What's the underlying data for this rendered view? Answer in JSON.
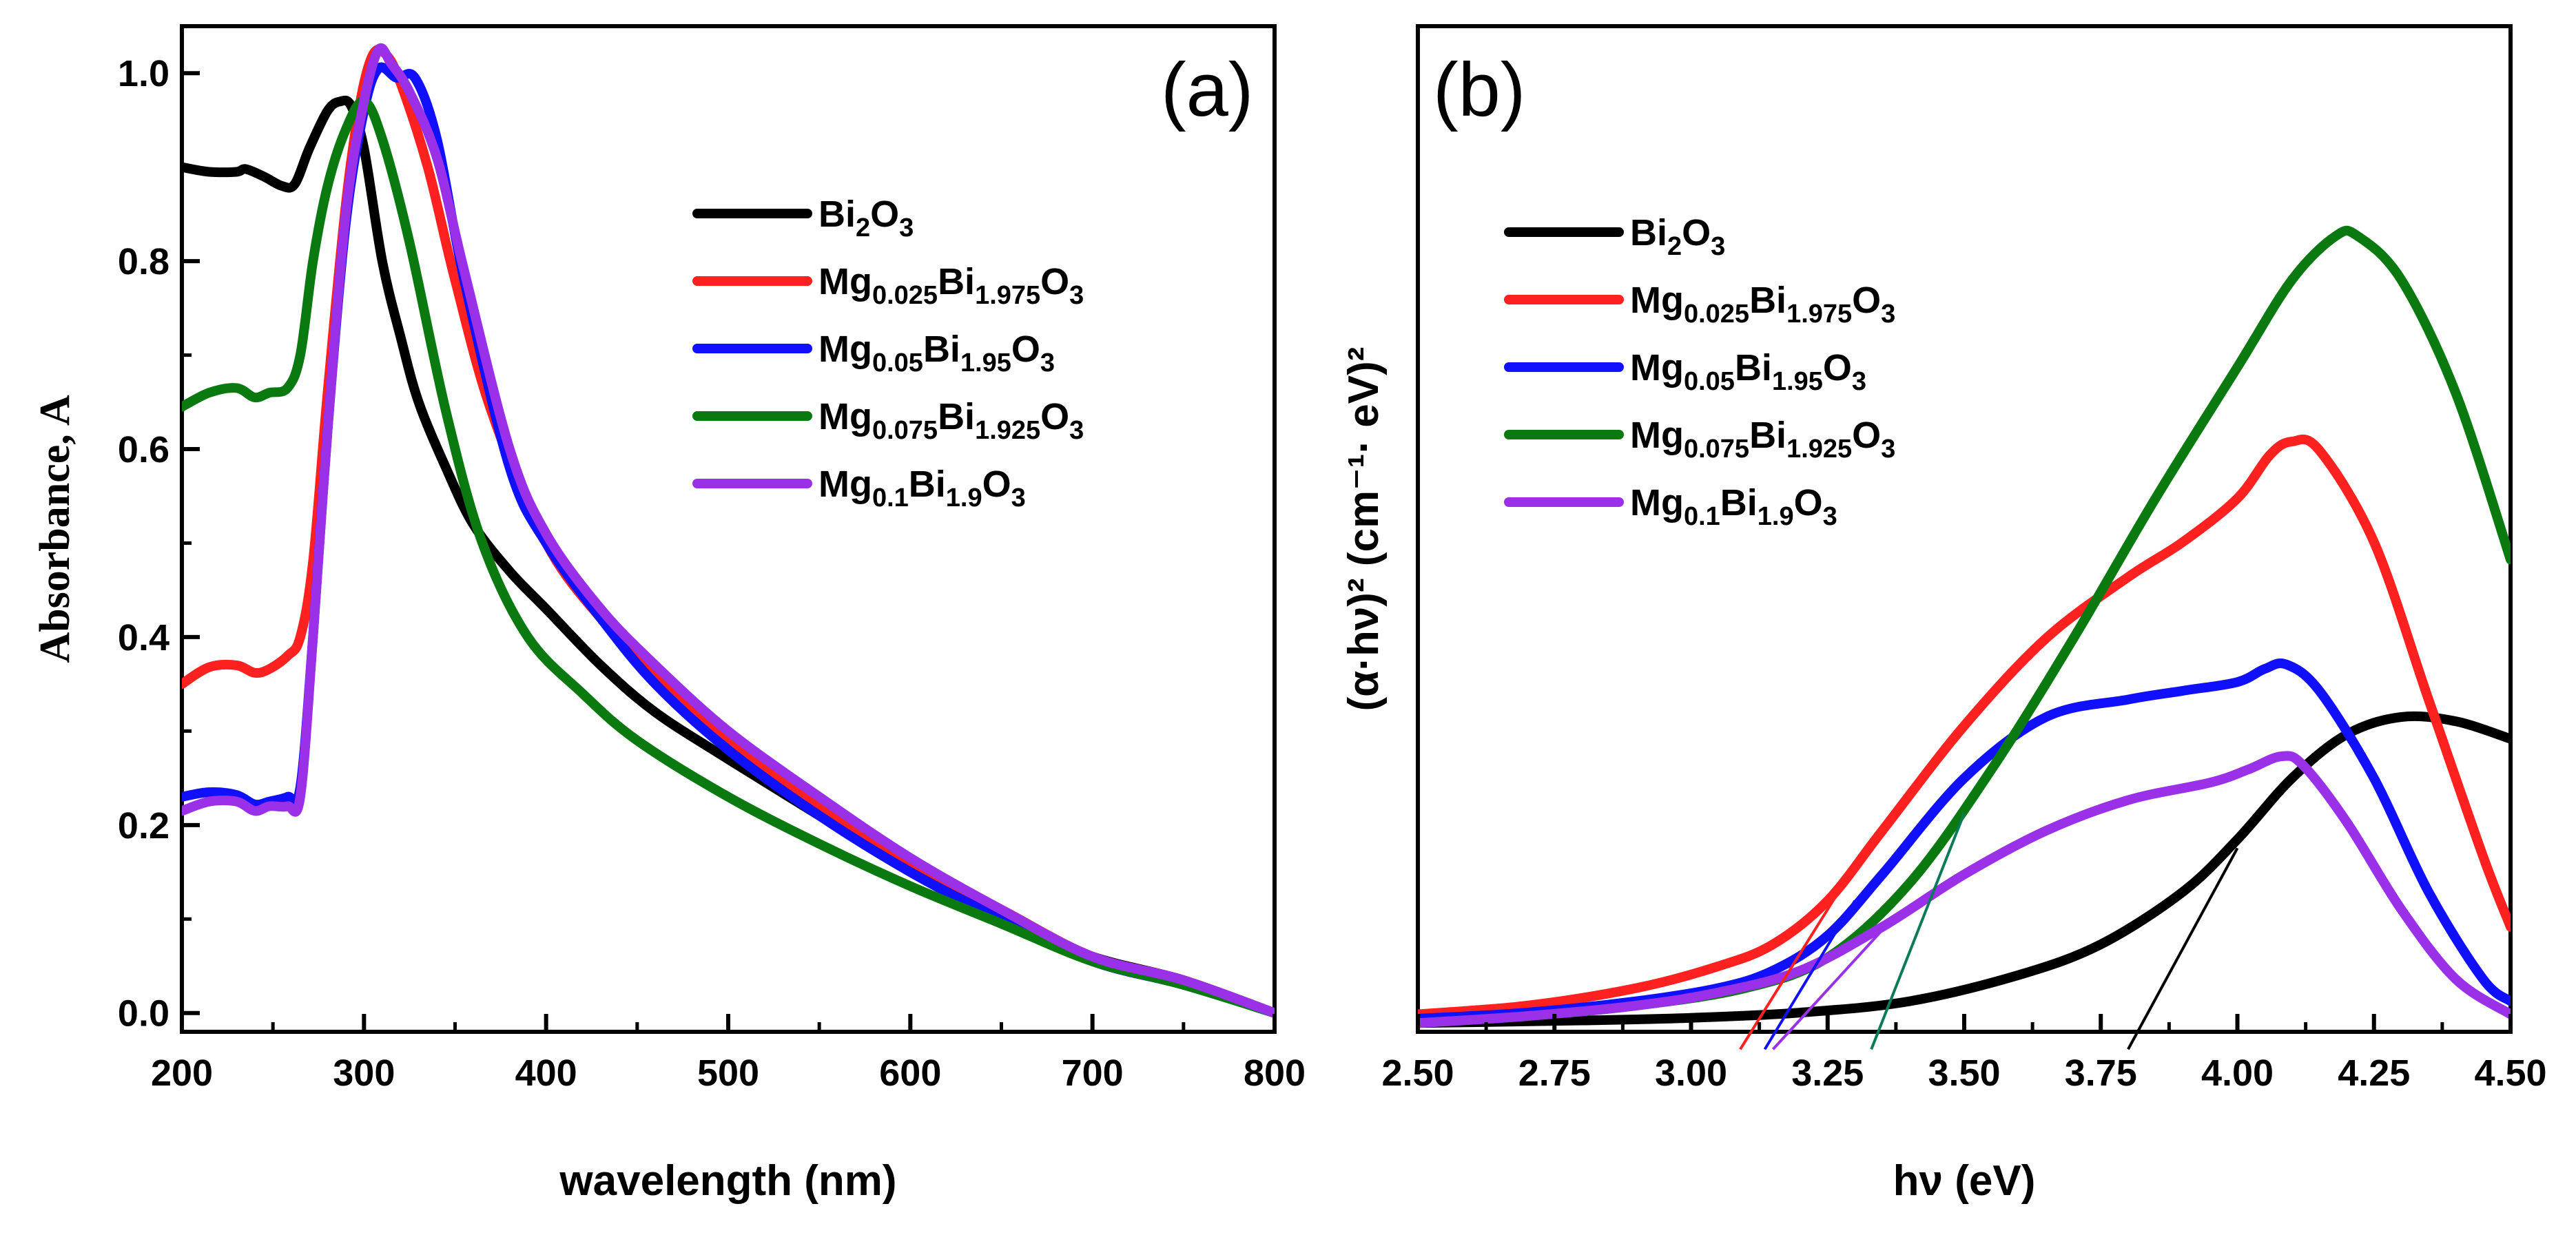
{
  "colors": {
    "Bi2O3": "#000000",
    "Mg0.025": "#ff2020",
    "Mg0.05": "#1010ff",
    "Mg0.075": "#0a7a10",
    "Mg0.1": "#9a30e8",
    "tangent_green": "#0a7a58"
  },
  "legend": [
    {
      "key": "Bi2O3",
      "base": "Bi",
      "parts": [
        [
          "Bi",
          "2"
        ],
        [
          "O",
          "3"
        ]
      ]
    },
    {
      "key": "Mg0.025",
      "parts": [
        [
          "Mg",
          "0.025"
        ],
        [
          "Bi",
          "1.975"
        ],
        [
          "O",
          "3"
        ]
      ]
    },
    {
      "key": "Mg0.05",
      "parts": [
        [
          "Mg",
          "0.05"
        ],
        [
          "Bi",
          "1.95"
        ],
        [
          "O",
          "3"
        ]
      ]
    },
    {
      "key": "Mg0.075",
      "parts": [
        [
          "Mg",
          "0.075"
        ],
        [
          "Bi",
          "1.925"
        ],
        [
          "O",
          "3"
        ]
      ]
    },
    {
      "key": "Mg0.1",
      "parts": [
        [
          "Mg",
          "0.1"
        ],
        [
          "Bi",
          "1.9"
        ],
        [
          "O",
          "3"
        ]
      ]
    }
  ],
  "chart_data": [
    {
      "panel": "(a)",
      "type": "line",
      "xlabel": "wavelength (nm)",
      "ylabel": "Absorbance, A",
      "xlim": [
        200,
        800
      ],
      "ylim": [
        -0.02,
        1.05
      ],
      "xticks": [
        200,
        300,
        400,
        500,
        600,
        700,
        800
      ],
      "yticks": [
        0.0,
        0.2,
        0.4,
        0.6,
        0.8,
        1.0
      ],
      "legend_position": "top-right",
      "series": [
        {
          "key": "Bi2O3",
          "points": [
            [
              200,
              0.9
            ],
            [
              215,
              0.895
            ],
            [
              230,
              0.895
            ],
            [
              235,
              0.898
            ],
            [
              245,
              0.89
            ],
            [
              255,
              0.88
            ],
            [
              262,
              0.882
            ],
            [
              270,
              0.92
            ],
            [
              280,
              0.96
            ],
            [
              287,
              0.97
            ],
            [
              293,
              0.965
            ],
            [
              300,
              0.92
            ],
            [
              310,
              0.8
            ],
            [
              320,
              0.72
            ],
            [
              330,
              0.65
            ],
            [
              345,
              0.58
            ],
            [
              360,
              0.52
            ],
            [
              380,
              0.47
            ],
            [
              400,
              0.43
            ],
            [
              430,
              0.37
            ],
            [
              460,
              0.32
            ],
            [
              500,
              0.27
            ],
            [
              550,
              0.21
            ],
            [
              600,
              0.15
            ],
            [
              650,
              0.1
            ],
            [
              700,
              0.06
            ],
            [
              750,
              0.035
            ],
            [
              800,
              0.0
            ]
          ]
        },
        {
          "key": "Mg0.025",
          "points": [
            [
              200,
              0.35
            ],
            [
              215,
              0.368
            ],
            [
              230,
              0.37
            ],
            [
              240,
              0.362
            ],
            [
              248,
              0.366
            ],
            [
              258,
              0.38
            ],
            [
              265,
              0.4
            ],
            [
              272,
              0.48
            ],
            [
              280,
              0.66
            ],
            [
              290,
              0.86
            ],
            [
              298,
              0.97
            ],
            [
              305,
              1.02
            ],
            [
              312,
              1.02
            ],
            [
              320,
              0.99
            ],
            [
              335,
              0.9
            ],
            [
              350,
              0.78
            ],
            [
              370,
              0.64
            ],
            [
              400,
              0.5
            ],
            [
              430,
              0.42
            ],
            [
              460,
              0.36
            ],
            [
              500,
              0.29
            ],
            [
              550,
              0.22
            ],
            [
              600,
              0.16
            ],
            [
              650,
              0.11
            ],
            [
              700,
              0.06
            ],
            [
              750,
              0.035
            ],
            [
              800,
              0.0
            ]
          ]
        },
        {
          "key": "Mg0.05",
          "points": [
            [
              200,
              0.23
            ],
            [
              215,
              0.235
            ],
            [
              230,
              0.232
            ],
            [
              240,
              0.222
            ],
            [
              248,
              0.225
            ],
            [
              258,
              0.23
            ],
            [
              265,
              0.24
            ],
            [
              272,
              0.4
            ],
            [
              280,
              0.62
            ],
            [
              290,
              0.84
            ],
            [
              300,
              0.96
            ],
            [
              308,
              1.005
            ],
            [
              318,
              0.995
            ],
            [
              328,
              0.995
            ],
            [
              340,
              0.93
            ],
            [
              355,
              0.78
            ],
            [
              380,
              0.58
            ],
            [
              400,
              0.5
            ],
            [
              430,
              0.42
            ],
            [
              460,
              0.35
            ],
            [
              500,
              0.28
            ],
            [
              550,
              0.21
            ],
            [
              600,
              0.15
            ],
            [
              650,
              0.1
            ],
            [
              700,
              0.055
            ],
            [
              750,
              0.03
            ],
            [
              800,
              0.0
            ]
          ]
        },
        {
          "key": "Mg0.075",
          "points": [
            [
              200,
              0.645
            ],
            [
              215,
              0.66
            ],
            [
              230,
              0.665
            ],
            [
              240,
              0.655
            ],
            [
              248,
              0.66
            ],
            [
              258,
              0.665
            ],
            [
              265,
              0.7
            ],
            [
              272,
              0.8
            ],
            [
              280,
              0.88
            ],
            [
              290,
              0.94
            ],
            [
              300,
              0.97
            ],
            [
              310,
              0.93
            ],
            [
              325,
              0.82
            ],
            [
              345,
              0.64
            ],
            [
              365,
              0.5
            ],
            [
              390,
              0.4
            ],
            [
              420,
              0.34
            ],
            [
              450,
              0.29
            ],
            [
              500,
              0.23
            ],
            [
              550,
              0.18
            ],
            [
              600,
              0.135
            ],
            [
              650,
              0.095
            ],
            [
              700,
              0.055
            ],
            [
              750,
              0.03
            ],
            [
              800,
              0.0
            ]
          ]
        },
        {
          "key": "Mg0.1",
          "points": [
            [
              200,
              0.215
            ],
            [
              215,
              0.225
            ],
            [
              230,
              0.225
            ],
            [
              240,
              0.215
            ],
            [
              248,
              0.22
            ],
            [
              258,
              0.22
            ],
            [
              265,
              0.23
            ],
            [
              272,
              0.4
            ],
            [
              280,
              0.62
            ],
            [
              290,
              0.85
            ],
            [
              300,
              0.97
            ],
            [
              308,
              1.025
            ],
            [
              315,
              1.01
            ],
            [
              325,
              0.98
            ],
            [
              340,
              0.91
            ],
            [
              355,
              0.79
            ],
            [
              380,
              0.6
            ],
            [
              400,
              0.51
            ],
            [
              430,
              0.43
            ],
            [
              460,
              0.37
            ],
            [
              500,
              0.3
            ],
            [
              550,
              0.23
            ],
            [
              600,
              0.165
            ],
            [
              650,
              0.11
            ],
            [
              700,
              0.06
            ],
            [
              750,
              0.035
            ],
            [
              800,
              0.0
            ]
          ]
        }
      ]
    },
    {
      "panel": "(b)",
      "type": "line",
      "xlabel": "hν (eV)",
      "ylabel": "(α·hν)² (cm⁻¹· eV)²",
      "xlim": [
        2.5,
        4.5
      ],
      "ylim": [
        0.0,
        1.15
      ],
      "xticks": [
        2.5,
        2.75,
        3.0,
        3.25,
        3.5,
        3.75,
        4.0,
        4.25,
        4.5
      ],
      "ytick_labels_shown": false,
      "legend_position": "top-left",
      "series": [
        {
          "key": "Bi2O3",
          "points": [
            [
              2.5,
              0.01
            ],
            [
              2.8,
              0.013
            ],
            [
              3.0,
              0.016
            ],
            [
              3.2,
              0.022
            ],
            [
              3.4,
              0.035
            ],
            [
              3.6,
              0.065
            ],
            [
              3.75,
              0.1
            ],
            [
              3.9,
              0.16
            ],
            [
              4.0,
              0.22
            ],
            [
              4.1,
              0.29
            ],
            [
              4.2,
              0.34
            ],
            [
              4.3,
              0.36
            ],
            [
              4.4,
              0.355
            ],
            [
              4.5,
              0.335
            ]
          ]
        },
        {
          "key": "Mg0.025",
          "points": [
            [
              2.5,
              0.02
            ],
            [
              2.7,
              0.03
            ],
            [
              2.9,
              0.05
            ],
            [
              3.05,
              0.075
            ],
            [
              3.15,
              0.1
            ],
            [
              3.25,
              0.15
            ],
            [
              3.35,
              0.23
            ],
            [
              3.5,
              0.35
            ],
            [
              3.65,
              0.45
            ],
            [
              3.8,
              0.52
            ],
            [
              3.9,
              0.56
            ],
            [
              4.0,
              0.61
            ],
            [
              4.06,
              0.66
            ],
            [
              4.1,
              0.675
            ],
            [
              4.15,
              0.665
            ],
            [
              4.25,
              0.56
            ],
            [
              4.35,
              0.38
            ],
            [
              4.45,
              0.2
            ],
            [
              4.5,
              0.12
            ]
          ]
        },
        {
          "key": "Mg0.05",
          "points": [
            [
              2.5,
              0.015
            ],
            [
              2.7,
              0.022
            ],
            [
              2.9,
              0.035
            ],
            [
              3.05,
              0.05
            ],
            [
              3.15,
              0.07
            ],
            [
              3.25,
              0.11
            ],
            [
              3.35,
              0.18
            ],
            [
              3.5,
              0.29
            ],
            [
              3.65,
              0.36
            ],
            [
              3.8,
              0.38
            ],
            [
              3.9,
              0.39
            ],
            [
              4.0,
              0.4
            ],
            [
              4.05,
              0.415
            ],
            [
              4.09,
              0.42
            ],
            [
              4.15,
              0.39
            ],
            [
              4.25,
              0.29
            ],
            [
              4.35,
              0.16
            ],
            [
              4.45,
              0.06
            ],
            [
              4.5,
              0.035
            ]
          ]
        },
        {
          "key": "Mg0.075",
          "points": [
            [
              2.5,
              0.01
            ],
            [
              2.7,
              0.018
            ],
            [
              2.9,
              0.03
            ],
            [
              3.1,
              0.05
            ],
            [
              3.25,
              0.085
            ],
            [
              3.4,
              0.17
            ],
            [
              3.55,
              0.3
            ],
            [
              3.7,
              0.45
            ],
            [
              3.85,
              0.61
            ],
            [
              4.0,
              0.76
            ],
            [
              4.1,
              0.86
            ],
            [
              4.18,
              0.91
            ],
            [
              4.22,
              0.91
            ],
            [
              4.3,
              0.86
            ],
            [
              4.4,
              0.73
            ],
            [
              4.5,
              0.54
            ]
          ]
        },
        {
          "key": "Mg0.1",
          "points": [
            [
              2.5,
              0.01
            ],
            [
              2.7,
              0.018
            ],
            [
              2.9,
              0.03
            ],
            [
              3.05,
              0.045
            ],
            [
              3.2,
              0.07
            ],
            [
              3.35,
              0.12
            ],
            [
              3.5,
              0.18
            ],
            [
              3.65,
              0.23
            ],
            [
              3.8,
              0.265
            ],
            [
              3.95,
              0.285
            ],
            [
              4.02,
              0.3
            ],
            [
              4.08,
              0.315
            ],
            [
              4.12,
              0.305
            ],
            [
              4.2,
              0.24
            ],
            [
              4.3,
              0.14
            ],
            [
              4.4,
              0.06
            ],
            [
              4.5,
              0.02
            ]
          ]
        }
      ],
      "tangents": [
        {
          "key": "Bi2O3",
          "from": [
            3.8,
            -0.02
          ],
          "to": [
            4.0,
            0.21
          ]
        },
        {
          "key": "Mg0.025",
          "from": [
            3.09,
            -0.02
          ],
          "to": [
            3.28,
            0.17
          ]
        },
        {
          "key": "Mg0.05",
          "from": [
            3.135,
            -0.02
          ],
          "to": [
            3.3,
            0.15
          ]
        },
        {
          "key": "tangent_green",
          "from": [
            3.33,
            -0.02
          ],
          "to": [
            3.5,
            0.25
          ]
        },
        {
          "key": "Mg0.1",
          "from": [
            3.15,
            -0.02
          ],
          "to": [
            3.37,
            0.13
          ]
        }
      ]
    }
  ]
}
